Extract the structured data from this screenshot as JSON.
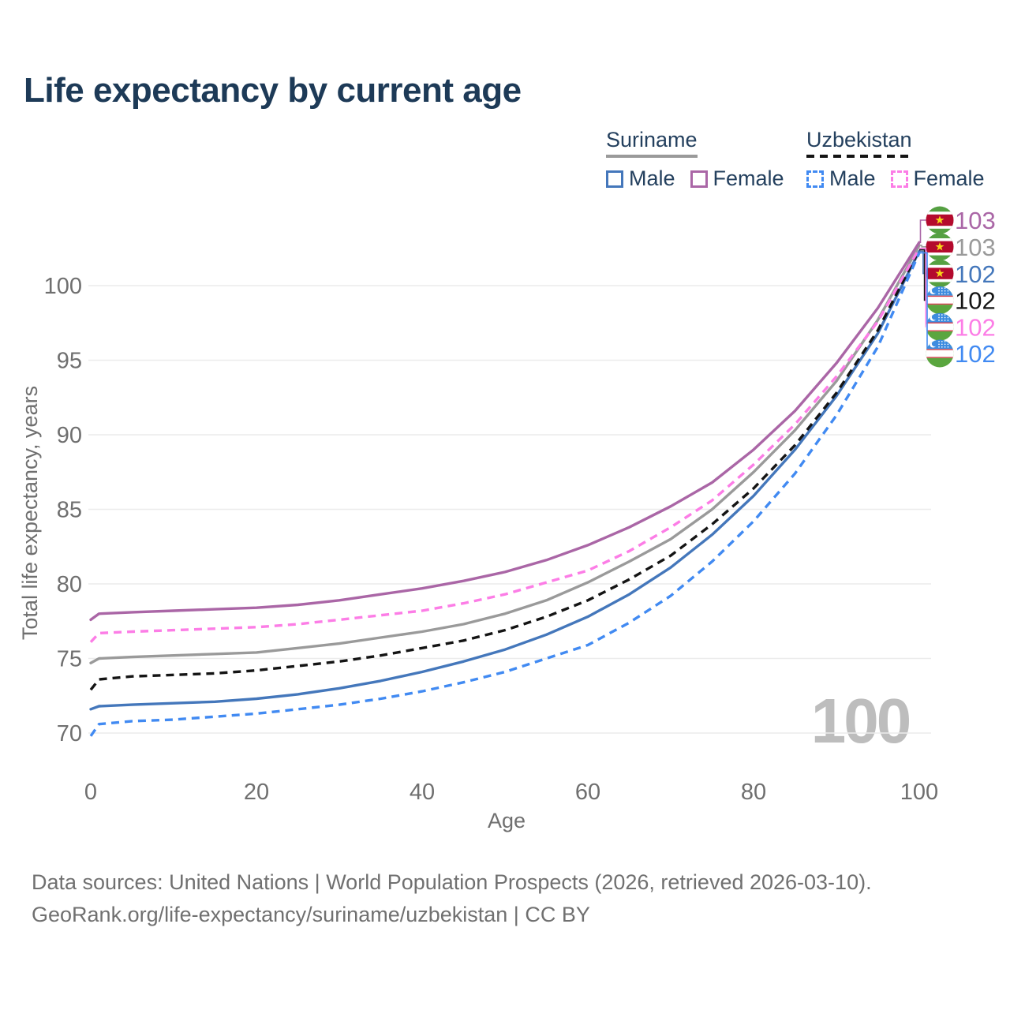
{
  "header": {
    "title": "Life expectancy by current age"
  },
  "legend": {
    "groups": [
      {
        "country": "Suriname",
        "line_style": "solid",
        "underline_color": "#9a9a9a",
        "items": [
          {
            "label": "Male",
            "color": "#4477bb",
            "dashed": false
          },
          {
            "label": "Female",
            "color": "#aa66a6",
            "dashed": false
          }
        ]
      },
      {
        "country": "Uzbekistan",
        "line_style": "dashed",
        "underline_color": "#141414",
        "items": [
          {
            "label": "Male",
            "color": "#418af2",
            "dashed": true
          },
          {
            "label": "Female",
            "color": "#fc7de6",
            "dashed": true
          }
        ]
      }
    ]
  },
  "chart_data": {
    "type": "line",
    "title": "Life expectancy by current age",
    "xlabel": "Age",
    "ylabel": "Total life expectancy, years",
    "x_ticks": [
      0,
      20,
      40,
      60,
      80,
      100
    ],
    "y_ticks": [
      70,
      75,
      80,
      85,
      90,
      95,
      100
    ],
    "xlim": [
      0,
      100
    ],
    "ylim": [
      69.5,
      103.5
    ],
    "grid": "horizontal",
    "legend_position": "top-right",
    "age_indicator": "100",
    "x": [
      0,
      1,
      5,
      10,
      15,
      20,
      25,
      30,
      35,
      40,
      45,
      50,
      55,
      60,
      65,
      70,
      75,
      80,
      85,
      90,
      95,
      100
    ],
    "series": [
      {
        "id": "suriname_total",
        "name": "Suriname",
        "color": "#9a9a9a",
        "dash": null,
        "values": [
          74.7,
          75.0,
          75.1,
          75.2,
          75.3,
          75.4,
          75.7,
          76.0,
          76.4,
          76.8,
          77.3,
          78.0,
          78.9,
          80.1,
          81.5,
          83.0,
          85.0,
          87.5,
          90.3,
          93.6,
          97.7,
          102.7
        ]
      },
      {
        "id": "suriname_male",
        "name": "Suriname Male",
        "color": "#4477bb",
        "dash": null,
        "values": [
          71.6,
          71.8,
          71.9,
          72.0,
          72.1,
          72.3,
          72.6,
          73.0,
          73.5,
          74.1,
          74.8,
          75.6,
          76.6,
          77.8,
          79.3,
          81.1,
          83.3,
          85.9,
          89.0,
          92.6,
          96.8,
          102.3
        ]
      },
      {
        "id": "suriname_female",
        "name": "Suriname Female",
        "color": "#aa66a6",
        "dash": null,
        "values": [
          77.6,
          78.0,
          78.1,
          78.2,
          78.3,
          78.4,
          78.6,
          78.9,
          79.3,
          79.7,
          80.2,
          80.8,
          81.6,
          82.6,
          83.8,
          85.2,
          86.8,
          89.0,
          91.6,
          94.8,
          98.5,
          102.9
        ]
      },
      {
        "id": "uzbekistan_total",
        "name": "Uzbekistan",
        "color": "#141414",
        "dash": "10 7",
        "values": [
          72.9,
          73.6,
          73.8,
          73.9,
          74.0,
          74.2,
          74.5,
          74.8,
          75.2,
          75.7,
          76.2,
          76.9,
          77.8,
          78.9,
          80.3,
          81.9,
          84.0,
          86.4,
          89.3,
          92.8,
          97.0,
          102.4
        ]
      },
      {
        "id": "uzbekistan_female",
        "name": "Uzbekistan Female",
        "color": "#fc7de6",
        "dash": "10 7",
        "values": [
          76.1,
          76.7,
          76.8,
          76.9,
          77.0,
          77.1,
          77.3,
          77.6,
          77.9,
          78.2,
          78.7,
          79.3,
          80.1,
          80.9,
          82.2,
          83.8,
          85.6,
          88.0,
          90.7,
          93.9,
          97.6,
          102.5
        ]
      },
      {
        "id": "uzbekistan_male",
        "name": "Uzbekistan Male",
        "color": "#418af2",
        "dash": "10 7",
        "values": [
          69.8,
          70.6,
          70.8,
          70.9,
          71.1,
          71.3,
          71.6,
          71.9,
          72.3,
          72.8,
          73.4,
          74.1,
          75.0,
          75.9,
          77.4,
          79.2,
          81.5,
          84.2,
          87.4,
          91.3,
          95.9,
          102.2
        ]
      }
    ],
    "end_labels": [
      {
        "series": "suriname_female",
        "flag": "suriname",
        "value": "103"
      },
      {
        "series": "suriname_total",
        "flag": "suriname",
        "value": "103"
      },
      {
        "series": "suriname_male",
        "flag": "suriname",
        "value": "102"
      },
      {
        "series": "uzbekistan_total",
        "flag": "uzbekistan",
        "value": "102"
      },
      {
        "series": "uzbekistan_female",
        "flag": "uzbekistan",
        "value": "102"
      },
      {
        "series": "uzbekistan_male",
        "flag": "uzbekistan",
        "value": "102"
      }
    ]
  },
  "footer": {
    "line1": "Data sources: United Nations | World Population Prospects (2026, retrieved 2026-03-10).",
    "line2": "GeoRank.org/life-expectancy/suriname/uzbekistan | CC BY"
  },
  "colors": {
    "title_text": "#1d3a57",
    "legend_text": "#24405e",
    "axis_text": "#6f6f6f",
    "grid": "#ececec",
    "watermark": "#bdbdbd",
    "footer_text": "#707070",
    "suriname_flag": {
      "green": "#55a042",
      "red": "#b40a2d",
      "star": "#f7d618"
    },
    "uzbekistan_flag": {
      "blue": "#3d8ce0",
      "green": "#5aa63f",
      "red": "#d6424f"
    }
  }
}
